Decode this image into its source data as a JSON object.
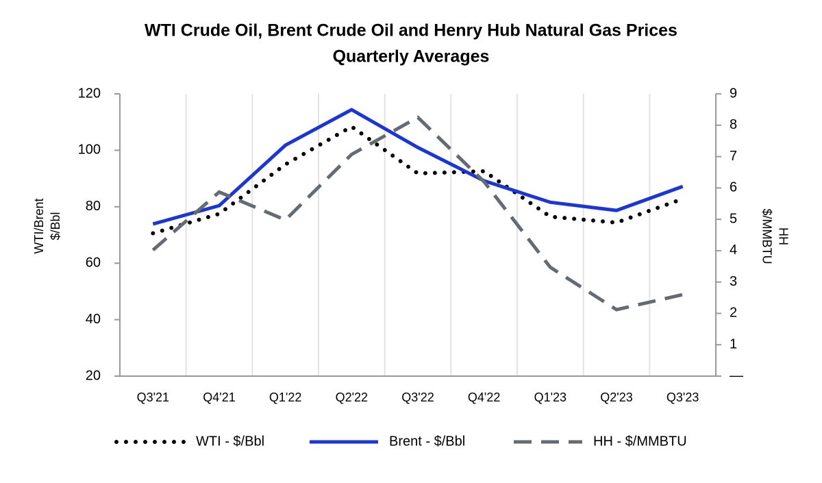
{
  "chart_data": {
    "type": "line",
    "title": "WTI Crude Oil, Brent Crude Oil and Henry Hub Natural Gas Prices",
    "subtitle": "Quarterly Averages",
    "y_label": [
      "WTI/Brent",
      "$/Bbl"
    ],
    "y2_label": [
      "HH",
      "$/MMBTU"
    ],
    "categories": [
      "Q3'21",
      "Q4'21",
      "Q1'22",
      "Q2'22",
      "Q3'22",
      "Q4'22",
      "Q1'23",
      "Q2'23",
      "Q3'23"
    ],
    "ylim": [
      20,
      120
    ],
    "yticks": [
      20,
      40,
      60,
      80,
      100,
      120
    ],
    "y2lim": [
      0,
      9
    ],
    "y2ticks": [
      {
        "value": 0,
        "label": "—"
      },
      1,
      2,
      3,
      4,
      5,
      6,
      7,
      8,
      9
    ],
    "grid": true,
    "legend": "bottom",
    "series": [
      {
        "name": "WTI - $/Bbl",
        "color": "#000000",
        "style": "dotted",
        "values": [
          70.6,
          77.5,
          95.0,
          108.4,
          91.8,
          92.6,
          76.5,
          74.4,
          82.8
        ]
      },
      {
        "name": "Brent - $/Bbl",
        "color": "#1b35d6",
        "style": "solid",
        "values": [
          73.9,
          80.4,
          101.8,
          114.4,
          101.0,
          89.2,
          81.6,
          78.7,
          87.2
        ]
      },
      {
        "name": "HH - $/MMBTU",
        "color": "#646b73",
        "style": "dashed",
        "axis": "y2",
        "values": [
          4.02,
          5.87,
          4.98,
          7.07,
          8.25,
          6.2,
          3.47,
          2.12,
          2.6
        ]
      }
    ]
  }
}
